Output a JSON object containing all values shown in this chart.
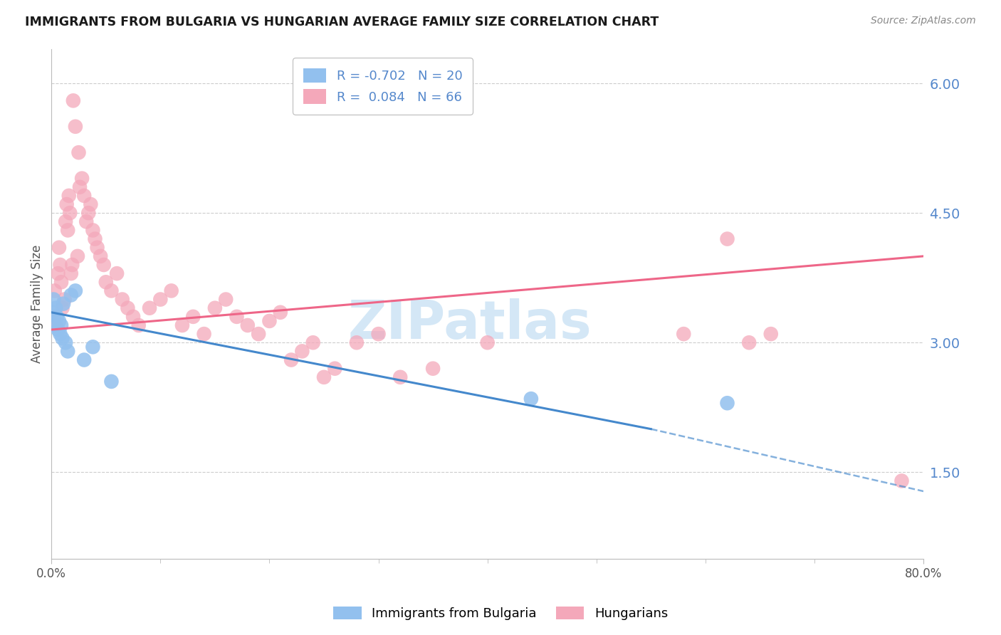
{
  "title": "IMMIGRANTS FROM BULGARIA VS HUNGARIAN AVERAGE FAMILY SIZE CORRELATION CHART",
  "source": "Source: ZipAtlas.com",
  "ylabel": "Average Family Size",
  "y_ticks": [
    1.5,
    3.0,
    4.5,
    6.0
  ],
  "y_min": 0.5,
  "y_max": 6.4,
  "x_min": 0.0,
  "x_max": 0.8,
  "bg_color": "#ffffff",
  "grid_color": "#cccccc",
  "legend_R_blue": "-0.702",
  "legend_N_blue": "20",
  "legend_R_pink": "0.084",
  "legend_N_pink": "66",
  "blue_color": "#92c0ee",
  "pink_color": "#f4a8ba",
  "trend_blue_color": "#4488cc",
  "trend_pink_color": "#ee6688",
  "tick_color": "#5588cc",
  "axis_color": "#bbbbbb",
  "watermark_color": "#b8d8f0",
  "watermark_text": "ZIPatlas",
  "blue_x": [
    0.001,
    0.002,
    0.003,
    0.004,
    0.005,
    0.006,
    0.007,
    0.008,
    0.009,
    0.01,
    0.011,
    0.013,
    0.015,
    0.018,
    0.022,
    0.03,
    0.038,
    0.055,
    0.44,
    0.62
  ],
  "blue_y": [
    3.35,
    3.5,
    3.2,
    3.4,
    3.3,
    3.15,
    3.25,
    3.1,
    3.2,
    3.05,
    3.45,
    3.0,
    2.9,
    3.55,
    3.6,
    2.8,
    2.95,
    2.55,
    2.35,
    2.3
  ],
  "pink_x": [
    0.002,
    0.003,
    0.004,
    0.006,
    0.007,
    0.008,
    0.009,
    0.01,
    0.012,
    0.013,
    0.014,
    0.015,
    0.016,
    0.017,
    0.018,
    0.019,
    0.02,
    0.022,
    0.024,
    0.025,
    0.026,
    0.028,
    0.03,
    0.032,
    0.034,
    0.036,
    0.038,
    0.04,
    0.042,
    0.045,
    0.048,
    0.05,
    0.055,
    0.06,
    0.065,
    0.07,
    0.075,
    0.08,
    0.09,
    0.1,
    0.11,
    0.12,
    0.13,
    0.14,
    0.15,
    0.16,
    0.17,
    0.18,
    0.19,
    0.2,
    0.21,
    0.22,
    0.23,
    0.24,
    0.25,
    0.26,
    0.28,
    0.3,
    0.32,
    0.35,
    0.4,
    0.58,
    0.62,
    0.64,
    0.66,
    0.78
  ],
  "pink_y": [
    3.3,
    3.6,
    3.2,
    3.8,
    4.1,
    3.9,
    3.7,
    3.4,
    3.5,
    4.4,
    4.6,
    4.3,
    4.7,
    4.5,
    3.8,
    3.9,
    5.8,
    5.5,
    4.0,
    5.2,
    4.8,
    4.9,
    4.7,
    4.4,
    4.5,
    4.6,
    4.3,
    4.2,
    4.1,
    4.0,
    3.9,
    3.7,
    3.6,
    3.8,
    3.5,
    3.4,
    3.3,
    3.2,
    3.4,
    3.5,
    3.6,
    3.2,
    3.3,
    3.1,
    3.4,
    3.5,
    3.3,
    3.2,
    3.1,
    3.25,
    3.35,
    2.8,
    2.9,
    3.0,
    2.6,
    2.7,
    3.0,
    3.1,
    2.6,
    2.7,
    3.0,
    3.1,
    4.2,
    3.0,
    3.1,
    1.4
  ],
  "trend_blue_x0": 0.0,
  "trend_blue_y0": 3.35,
  "trend_blue_x1": 0.55,
  "trend_blue_y1": 2.0,
  "trend_blue_dashed_x1": 0.8,
  "trend_blue_dashed_y1": 1.28,
  "trend_pink_x0": 0.0,
  "trend_pink_y0": 3.15,
  "trend_pink_x1": 0.8,
  "trend_pink_y1": 4.0
}
